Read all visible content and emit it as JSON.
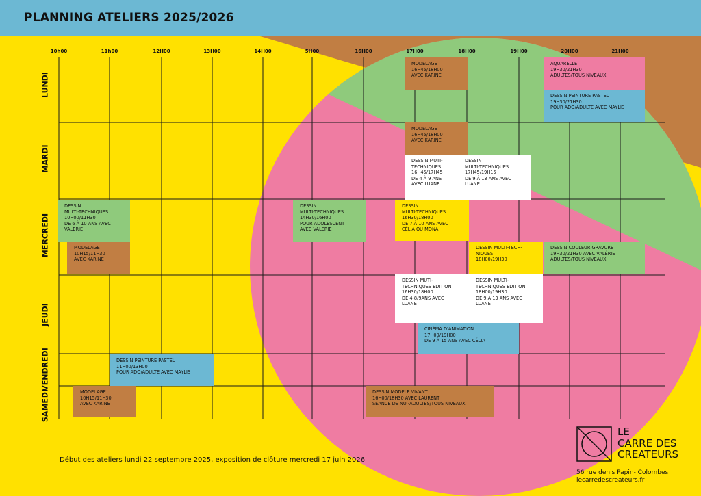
{
  "title": "PLANNING ATELIERS 2025/2026",
  "times": [
    "10h00",
    "11h00",
    "12H00",
    "13H00",
    "14H00",
    "5H00",
    "16H00",
    "17H00",
    "18H00",
    "19H00",
    "20H00",
    "21H00"
  ],
  "days": [
    "LUNDI",
    "MARDI",
    "MERCREDI",
    "JEUDI",
    "VENDREDI",
    "SAMEDI"
  ],
  "events": [
    {
      "day": "LUNDI",
      "text": "MODELAGE\n16H45/18H00\nAVEC KARINE",
      "color": "#c17e43"
    },
    {
      "day": "LUNDI",
      "text": "AQUARELLE\n19H30/21H30\nADULTES/TOUS NIVEAUX",
      "color": "#ef7ca2"
    },
    {
      "day": "LUNDI",
      "text": "DESSIN PEINTURE PASTEL\n19H30/21H30\nPOUR ADO/ADULTE AVEC MAYLIS",
      "color": "#6cb8d3"
    },
    {
      "day": "MARDI",
      "text": "MODELAGE\n16H45/18H00\nAVEC KARINE",
      "color": "#c17e43"
    },
    {
      "day": "MARDI",
      "text": "DESSIN MUTI-\nTECHNIQUES\n16H45/17H45\nDE 4 À 9 ANS\nAVEC LUANE",
      "color": "#ffffff"
    },
    {
      "day": "MARDI",
      "text": "DESSIN\nMULTI-TECHNIQUES\n17H45/19H15\nDE 9 À 13 ANS AVEC\nLUANE",
      "color": "#ffffff"
    },
    {
      "day": "MERCREDI",
      "text": "DESSIN\nMULTI-TECHNIQUES\n10H00/11H30\nDE 6 À 10 ANS AVEC\nVALERIE",
      "color": "#8fca7c"
    },
    {
      "day": "MERCREDI",
      "text": "MODELAGE\n10H15/11H30\nAVEC KARINE",
      "color": "#c17e43"
    },
    {
      "day": "MERCREDI",
      "text": "DESSIN\nMULTI-TECHNIQUES\n14H30/16H00\nPOUR ADOLESCENT\nAVEC VALERIE",
      "color": "#8fca7c"
    },
    {
      "day": "MERCREDI",
      "text": "DESSIN\nMULTI-TECHNIQUES\n16H30/18H00\nDE 7 À 10 ANS AVEC\nCÉLIA OU MONA",
      "color": "#ffe100"
    },
    {
      "day": "MERCREDI",
      "text": "DESSIN MULTI-TECH-\nNIQUES\n18H00/19H30",
      "color": "#ffe100"
    },
    {
      "day": "MERCREDI",
      "text": "DESSIN COULEUR GRAVURE\n19H30/21H30 AVEC VALÉRIE\nADULTES/TOUS NIVEAUX",
      "color": "#8fca7c"
    },
    {
      "day": "JEUDI",
      "text": "DESSIN MUTI-\nTECHNIQUES EDITION\n16H30/18H00\nDE 4-8/9ANS AVEC\nLUANE",
      "color": "#ffffff"
    },
    {
      "day": "JEUDI",
      "text": "DESSIN MULTI-\nTECHNIQUES EDITION\n18H00/19H30\nDE 9 À 13 ANS AVEC\nLUANE",
      "color": "#ffffff"
    },
    {
      "day": "JEUDI",
      "text": "CINÉMA D'ANIMATION\n17H00/19H00\nDE 9 À 15 ANS AVEC CÉLIA",
      "color": "#6cb8d3"
    },
    {
      "day": "VENDREDI",
      "text": "DESSIN PEINTURE PASTEL\n11H00/13H00\nPOUR ADO/ADULTE AVEC  MAYLIS",
      "color": "#6cb8d3"
    },
    {
      "day": "SAMEDI",
      "text": "MODELAGE\n10H15/11H30\nAVEC KARINE",
      "color": "#c17e43"
    },
    {
      "day": "SAMEDI",
      "text": "DESSIN MODÈLE VIVANT\n16H00/18H30 AVEC LAURENT\nSÉANCE DE NU -ADULTES/TOUS NIVEAUX",
      "color": "#c17e43"
    }
  ],
  "footer": "Début des ateliers lundi 22 septembre 2025, exposition de clôture mercredi  17 juin 2026",
  "logo": {
    "text": "LE\nCARRE DES\nCREATEURS",
    "address": "56 rue denis Papin- Colombes",
    "website": "lecarredescreateurs.fr"
  }
}
